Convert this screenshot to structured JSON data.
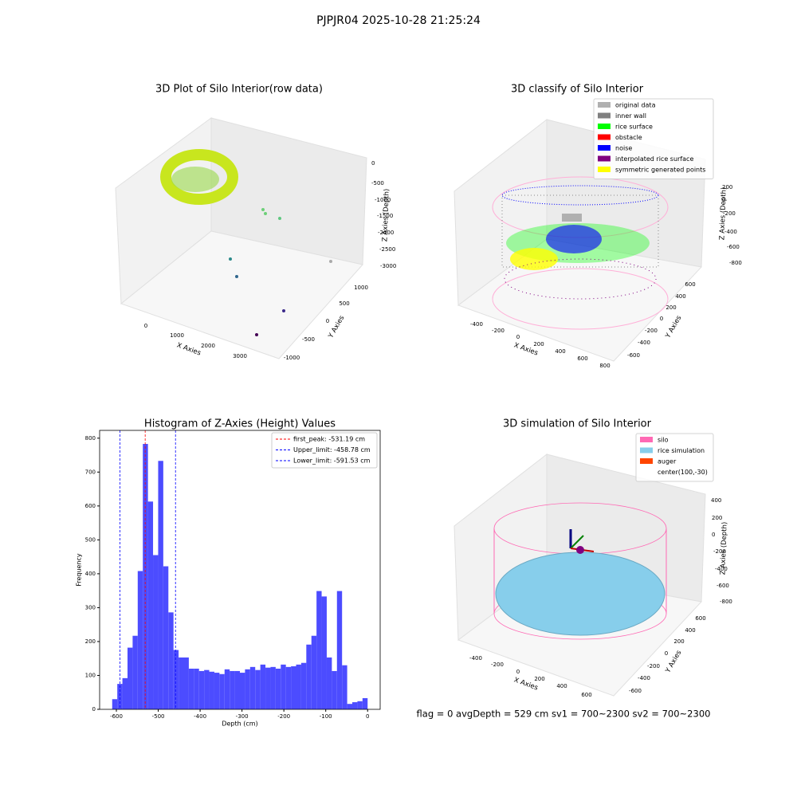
{
  "title": "PJPJR04 2025-10-28 21:25:24",
  "annotation": "flag = 0     avgDepth = 529 cm  sv1 = 700~2300  sv2 = 700~2300",
  "chart_data": [
    {
      "type": "scatter3d",
      "title": "3D Plot of Silo Interior(row data)",
      "xlabel": "X Axies",
      "ylabel": "Y Axies",
      "zlabel": "Z Axies (Depth)",
      "xticks": [
        0,
        1000,
        2000,
        3000
      ],
      "yticks": [
        -1000,
        -500,
        0,
        500,
        1000
      ],
      "zticks": [
        0,
        -500,
        -1000,
        -1500,
        -2000,
        -2500,
        -3000
      ]
    },
    {
      "type": "scatter3d",
      "title": "3D classify of Silo Interior",
      "xlabel": "X Axies",
      "ylabel": "Y Axies",
      "zlabel": "Z Axies (Depth)",
      "xticks": [
        -400,
        -200,
        0,
        200,
        400,
        600,
        800
      ],
      "yticks": [
        -600,
        -400,
        -200,
        0,
        200,
        400,
        600
      ],
      "zticks": [
        200,
        0,
        -200,
        -400,
        -600,
        -800
      ],
      "legend": [
        {
          "name": "original data",
          "color": "#b0b0b0"
        },
        {
          "name": "inner wall",
          "color": "#808080"
        },
        {
          "name": "rice surface",
          "color": "#00ff00"
        },
        {
          "name": "obstacle",
          "color": "#ff0000"
        },
        {
          "name": "noise",
          "color": "#0000ff"
        },
        {
          "name": "interpolated rice surface",
          "color": "#800080"
        },
        {
          "name": "symmetric generated points",
          "color": "#ffff00"
        }
      ]
    },
    {
      "type": "histogram",
      "title": "Histogram of Z-Axies (Height) Values",
      "xlabel": "Depth (cm)",
      "ylabel": "Frequency",
      "color": "#4c4cff",
      "bins": [
        -610,
        -597.8,
        -585.6,
        -573.4,
        -561.2,
        -549,
        -536.8,
        -524.6,
        -512.4,
        -500.2,
        -488,
        -475.8,
        -463.6,
        -451.4,
        -439.2,
        -427,
        -414.8,
        -402.6,
        -390.4,
        -378.2,
        -366,
        -353.8,
        -341.6,
        -329.4,
        -317.2,
        -305,
        -292.8,
        -280.6,
        -268.4,
        -256.2,
        -244,
        -231.8,
        -219.6,
        -207.4,
        -195.2,
        -183,
        -170.8,
        -158.6,
        -146.4,
        -134.2,
        -122,
        -109.8,
        -97.6,
        -85.4,
        -73.2,
        -61,
        -48.8,
        -36.6,
        -24.4,
        -12.2,
        0
      ],
      "counts": [
        30,
        75,
        92,
        182,
        217,
        408,
        783,
        613,
        455,
        733,
        422,
        286,
        175,
        153,
        153,
        120,
        120,
        113,
        116,
        111,
        108,
        104,
        118,
        113,
        113,
        108,
        118,
        125,
        116,
        132,
        123,
        125,
        120,
        132,
        125,
        127,
        132,
        137,
        191,
        217,
        349,
        333,
        153,
        113,
        349,
        130,
        16,
        21,
        24,
        33
      ],
      "lines": [
        {
          "name": "first_peak: -531.19 cm",
          "value": -531.19,
          "color": "#ff0000"
        },
        {
          "name": "Upper_limit: -458.78 cm",
          "value": -458.78,
          "color": "#0000ff"
        },
        {
          "name": "Lower_limit: -591.53 cm",
          "value": -591.53,
          "color": "#0000ff"
        }
      ],
      "xlim": [
        -640,
        30
      ],
      "ylim": [
        0,
        823
      ],
      "xticks": [
        -600,
        -500,
        -400,
        -300,
        -200,
        -100,
        0
      ],
      "yticks": [
        0,
        100,
        200,
        300,
        400,
        500,
        600,
        700,
        800
      ]
    },
    {
      "type": "surface3d",
      "title": "3D simulation of Silo Interior",
      "xlabel": "X Axies",
      "ylabel": "Y Axies",
      "zlabel": "Z Axies (Depth)",
      "xticks": [
        -400,
        -200,
        0,
        200,
        400,
        600
      ],
      "yticks": [
        -600,
        -400,
        -200,
        0,
        200,
        400,
        600
      ],
      "zticks": [
        400,
        200,
        0,
        -200,
        -400,
        -600,
        -800
      ],
      "legend": [
        {
          "name": "silo",
          "color": "#ff69b4"
        },
        {
          "name": "rice simulation",
          "color": "#87ceeb"
        },
        {
          "name": "auger",
          "color": "#ff4500"
        },
        {
          "name": "center(100,-30)"
        }
      ]
    }
  ]
}
